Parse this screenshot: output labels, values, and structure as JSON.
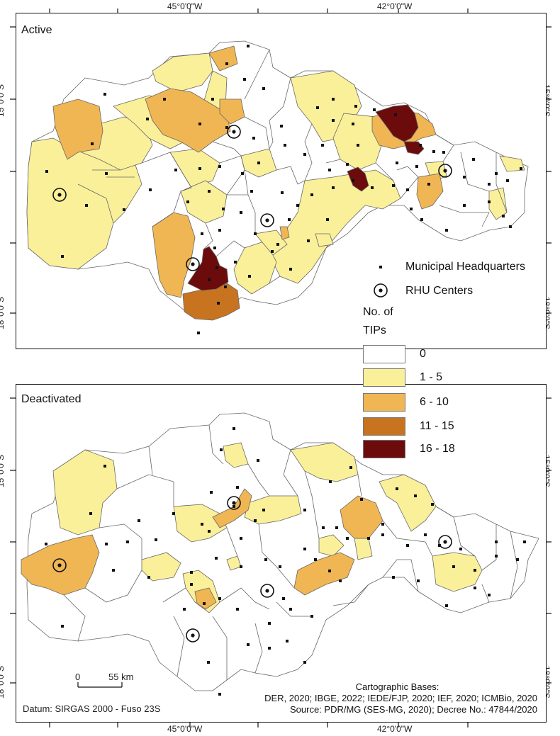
{
  "coords": {
    "top": [
      "45°0'0\"W",
      "42°0'0\"W"
    ],
    "bottom": [
      "45°0'0\"W",
      "42°0'0\"W"
    ],
    "left": [
      "15°0'0\"S",
      "18°0'0\"S",
      "15°0'0\"S",
      "18°0'0\"S"
    ],
    "right": [
      "15°0'0\"S",
      "18°0'0\"S",
      "15°0'0\"S",
      "18°0'0\"S"
    ]
  },
  "panels": {
    "active": {
      "title": "Active"
    },
    "deactivated": {
      "title": "Deactivated"
    }
  },
  "legend": {
    "municipal_hq": "Municipal Headquarters",
    "rhu_centers": "RHU Centers",
    "tips_title_1": "No. of",
    "tips_title_2": "TIPs",
    "classes": [
      {
        "label": "0",
        "color": "#ffffff"
      },
      {
        "label": "1 - 5",
        "color": "#fbf09a"
      },
      {
        "label": "6 - 10",
        "color": "#f0b654"
      },
      {
        "label": "11 - 15",
        "color": "#c87320"
      },
      {
        "label": "16 - 18",
        "color": "#6b0b0b"
      }
    ]
  },
  "scalebar": {
    "zero": "0",
    "max": "55 km"
  },
  "datum": "Datum: SIRGAS 2000 - Fuso 23S",
  "sources": {
    "line1": "Cartographic Bases:",
    "line2": "DER, 2020; IBGE, 2022; IEDE/FJP, 2020; IEF, 2020; ICMBio, 2020",
    "line3": "Source: PDR/MG (SES-MG, 2020); Decree No.: 47844/2020"
  }
}
